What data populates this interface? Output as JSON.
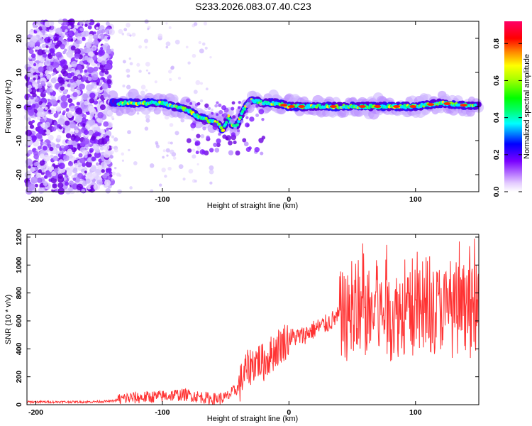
{
  "title": "S233.2026.083.07.40.C23",
  "chart_data": [
    {
      "type": "heatmap",
      "xlabel": "Height of straight line (km)",
      "ylabel": "Frequency (Hz)",
      "xlim": [
        -207,
        150
      ],
      "ylim": [
        -25,
        25
      ],
      "xticks": [
        -200,
        -100,
        0,
        100
      ],
      "yticks": [
        -20,
        -10,
        0,
        10,
        20
      ],
      "colorbar": {
        "label": "Normalized spectral amplitude",
        "range": [
          0,
          0.92
        ],
        "ticks": [
          0.0,
          0.2,
          0.4,
          0.6,
          0.8
        ]
      },
      "ridge": {
        "x": [
          -140,
          -120,
          -100,
          -90,
          -80,
          -72,
          -64,
          -56,
          -52,
          -48,
          -44,
          -40,
          -36,
          -30,
          -20,
          -10,
          0,
          20,
          40,
          60,
          80,
          100,
          120,
          150
        ],
        "y": [
          1,
          1,
          1,
          0,
          -1,
          -3,
          -4,
          -5,
          -7,
          -3,
          -6,
          -5,
          -1,
          2,
          1,
          1,
          0,
          0,
          0,
          0,
          0,
          0,
          1,
          0
        ]
      }
    },
    {
      "type": "line",
      "xlabel": "Height of straight line (km)",
      "ylabel": "SNR (10 * v/v)",
      "xlim": [
        -207,
        150
      ],
      "ylim": [
        0,
        1220
      ],
      "xticks": [
        -200,
        -100,
        0,
        100
      ],
      "yticks": [
        0,
        200,
        400,
        600,
        800,
        1000,
        1200
      ],
      "series": [
        {
          "name": "SNR",
          "color": "#ff3333",
          "x": [
            -207,
            -180,
            -160,
            -140,
            -130,
            -120,
            -110,
            -100,
            -90,
            -80,
            -70,
            -60,
            -50,
            -40,
            -35,
            -30,
            -25,
            -20,
            -10,
            0,
            10,
            20,
            30,
            40,
            50,
            60,
            70,
            80,
            90,
            100,
            110,
            120,
            130,
            140,
            150
          ],
          "y": [
            20,
            20,
            20,
            25,
            45,
            50,
            55,
            60,
            70,
            70,
            55,
            40,
            50,
            120,
            230,
            280,
            320,
            300,
            400,
            480,
            490,
            540,
            580,
            640,
            620,
            650,
            660,
            630,
            670,
            640,
            660,
            700,
            650,
            620,
            700
          ]
        }
      ]
    }
  ]
}
